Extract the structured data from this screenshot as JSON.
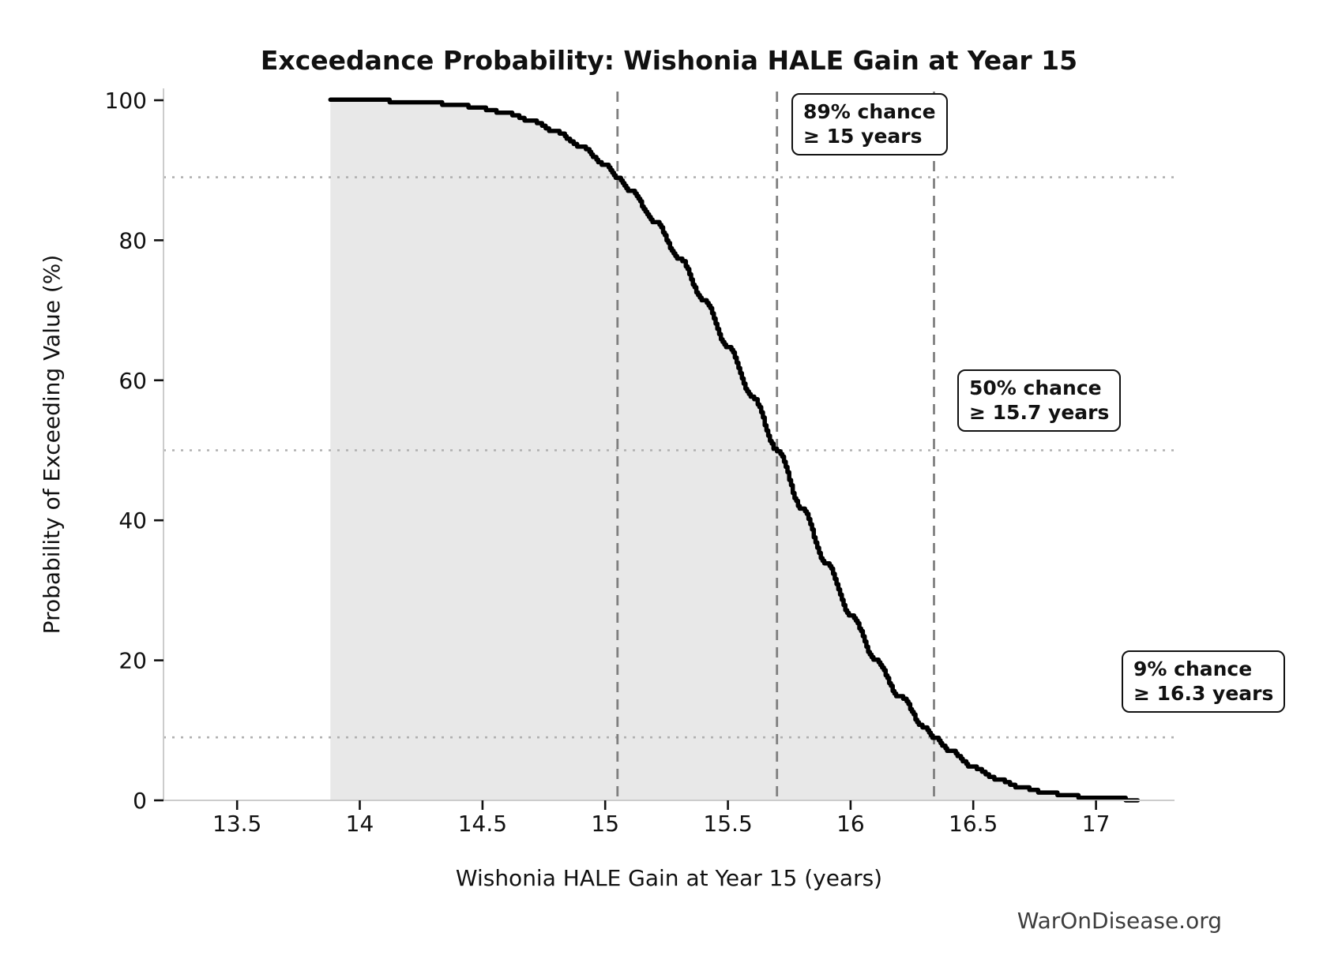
{
  "page": {
    "watermark": "WarOnDisease.org"
  },
  "chart_data": {
    "type": "line",
    "title": "Exceedance Probability: Wishonia HALE Gain at Year 15",
    "xlabel": "Wishonia HALE Gain at Year 15 (years)",
    "ylabel": "Probability of Exceeding Value (%)",
    "xlim": [
      13.2,
      17.32
    ],
    "ylim": [
      0,
      100
    ],
    "x_ticks": [
      13.5,
      14,
      14.5,
      15,
      15.5,
      16,
      16.5,
      17
    ],
    "x_tick_labels": [
      "13.5",
      "14",
      "14.5",
      "15",
      "15.5",
      "16",
      "16.5",
      "17"
    ],
    "y_ticks": [
      0,
      20,
      40,
      60,
      80,
      100
    ],
    "y_tick_labels": [
      "0",
      "20",
      "40",
      "60",
      "80",
      "100"
    ],
    "grid": "off",
    "legend": "none",
    "series": [
      {
        "name": "Exceedance probability curve",
        "style": "stepped-empirical",
        "line_color": "#000000",
        "fill_color": "#e8e8e8",
        "points": [
          [
            13.88,
            100.0
          ],
          [
            14.0,
            99.9
          ],
          [
            14.1,
            99.9
          ],
          [
            14.2,
            99.8
          ],
          [
            14.3,
            99.6
          ],
          [
            14.4,
            99.3
          ],
          [
            14.5,
            98.8
          ],
          [
            14.6,
            98.1
          ],
          [
            14.7,
            97.0
          ],
          [
            14.8,
            95.5
          ],
          [
            14.9,
            93.4
          ],
          [
            15.0,
            90.7
          ],
          [
            15.05,
            89.0
          ],
          [
            15.1,
            87.1
          ],
          [
            15.2,
            82.7
          ],
          [
            15.3,
            77.5
          ],
          [
            15.4,
            71.4
          ],
          [
            15.5,
            64.7
          ],
          [
            15.6,
            57.5
          ],
          [
            15.7,
            50.0
          ],
          [
            15.8,
            41.7
          ],
          [
            15.9,
            33.8
          ],
          [
            16.0,
            26.5
          ],
          [
            16.1,
            20.1
          ],
          [
            16.2,
            14.8
          ],
          [
            16.3,
            10.5
          ],
          [
            16.34,
            9.0
          ],
          [
            16.4,
            7.2
          ],
          [
            16.5,
            4.7
          ],
          [
            16.6,
            3.0
          ],
          [
            16.7,
            1.8
          ],
          [
            16.8,
            1.1
          ],
          [
            16.9,
            0.6
          ],
          [
            17.0,
            0.3
          ],
          [
            17.1,
            0.2
          ],
          [
            17.17,
            0.1
          ]
        ]
      }
    ],
    "reference_lines": {
      "horizontal_dotted": [
        {
          "y": 89,
          "color": "#b0b0b0"
        },
        {
          "y": 50,
          "color": "#b0b0b0"
        },
        {
          "y": 9,
          "color": "#b0b0b0"
        }
      ],
      "vertical_dashed": [
        {
          "x": 15.05,
          "color": "#7f7f7f"
        },
        {
          "x": 15.7,
          "color": "#7f7f7f"
        },
        {
          "x": 16.34,
          "color": "#7f7f7f"
        }
      ]
    },
    "annotations": [
      {
        "line1": "89% chance",
        "line2": "≥ 15 years",
        "prob_pct": 89,
        "threshold_years": 15
      },
      {
        "line1": "50% chance",
        "line2": "≥ 15.7 years",
        "prob_pct": 50,
        "threshold_years": 15.7
      },
      {
        "line1": "9% chance",
        "line2": "≥ 16.3 years",
        "prob_pct": 9,
        "threshold_years": 16.3
      }
    ]
  },
  "colors": {
    "curve": "#000000",
    "fill": "#e8e8e8",
    "dashed_line": "#7f7f7f",
    "dotted_line": "#b0b0b0",
    "spine": "#cccccc",
    "tick": "#111111",
    "watermark_text": "#3d3d3d"
  }
}
